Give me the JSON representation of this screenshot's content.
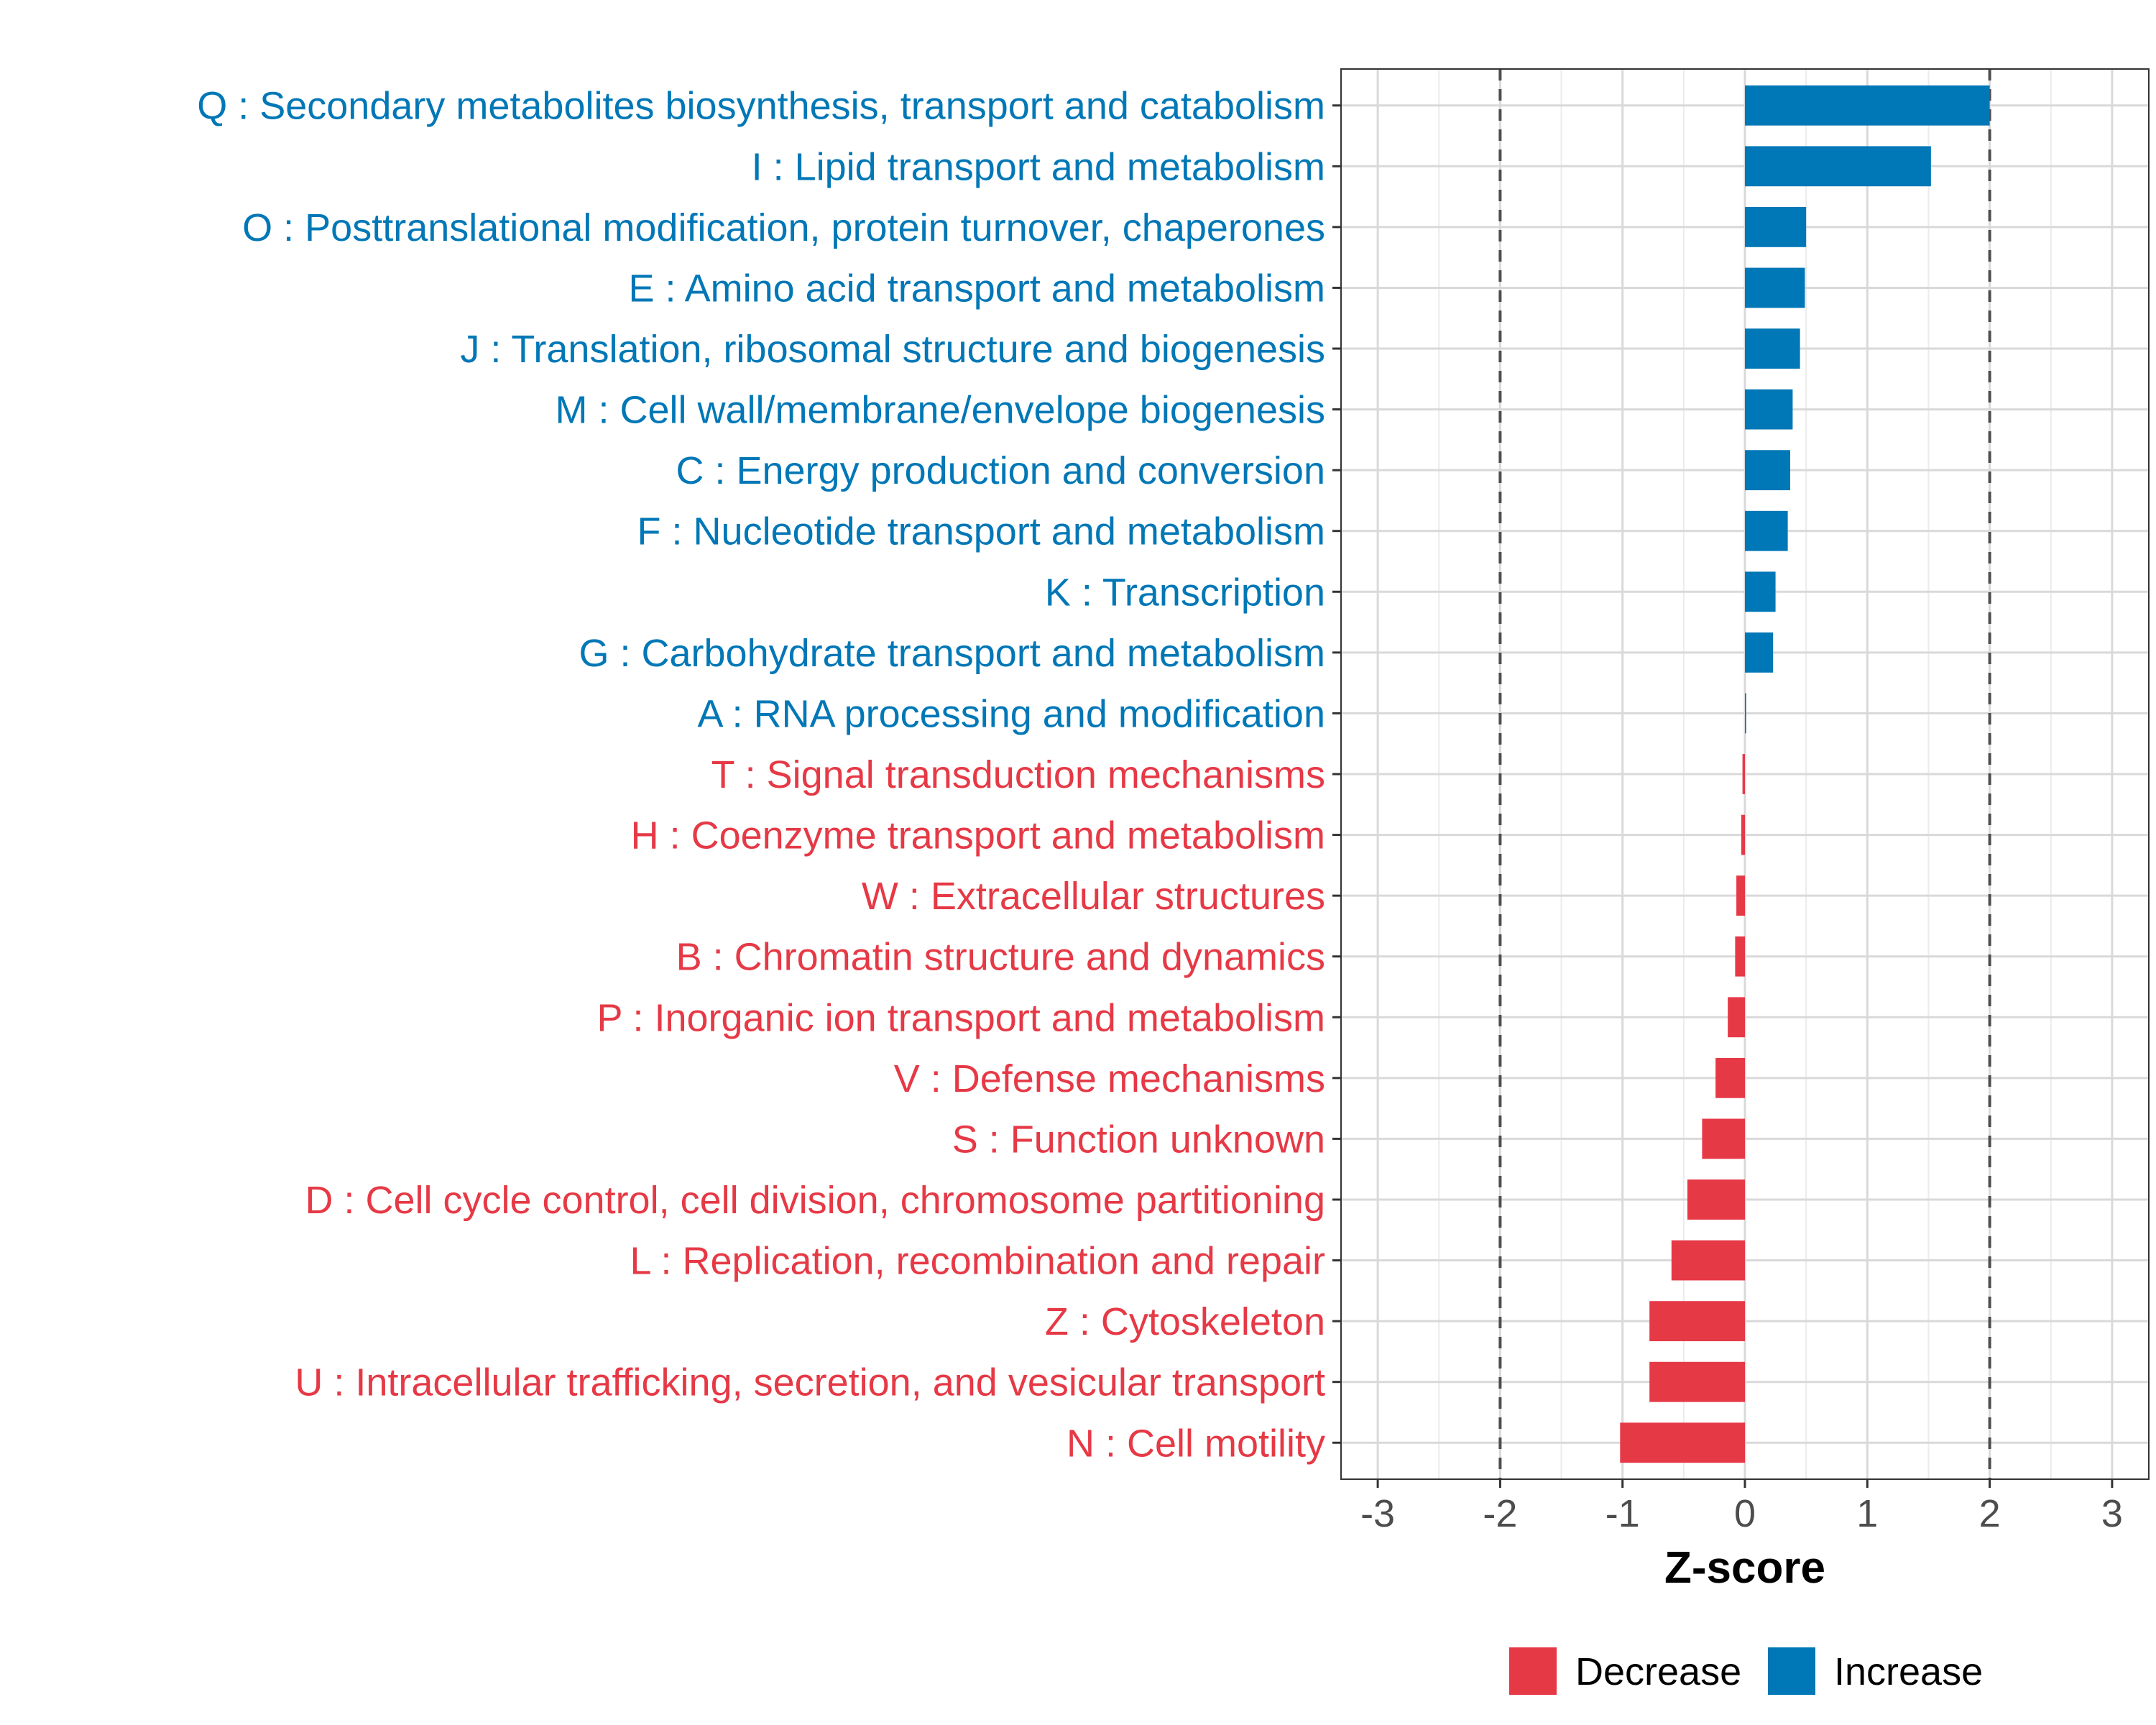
{
  "chart_data": {
    "type": "bar",
    "orientation": "horizontal",
    "title": "",
    "xlabel": "Z-score",
    "ylabel": "",
    "xlim": [
      -3.3,
      3.3
    ],
    "xticks": [
      -3,
      -2,
      -1,
      0,
      1,
      2,
      3
    ],
    "xtick_labels": [
      "-3",
      "-2",
      "-1",
      "0",
      "1",
      "2",
      "3"
    ],
    "reference_lines": [
      -2,
      2
    ],
    "grid": true,
    "colors": {
      "Decrease": "#e63946",
      "Increase": "#0077b6"
    },
    "legend": {
      "position": "bottom",
      "entries": [
        {
          "label": "Decrease",
          "color": "#e63946"
        },
        {
          "label": "Increase",
          "color": "#0077b6"
        }
      ]
    },
    "categories": [
      "Q : Secondary metabolites biosynthesis, transport and catabolism",
      "I : Lipid transport and metabolism",
      "O : Posttranslational modification, protein turnover, chaperones",
      "E : Amino acid transport and metabolism",
      "J : Translation, ribosomal structure and biogenesis",
      "M : Cell wall/membrane/envelope biogenesis",
      "C : Energy production and conversion",
      "F : Nucleotide transport and metabolism",
      "K : Transcription",
      "G : Carbohydrate transport and metabolism",
      "A : RNA processing and modification",
      "T : Signal transduction mechanisms",
      "H : Coenzyme transport and metabolism",
      "W : Extracellular structures",
      "B : Chromatin structure and dynamics",
      "P : Inorganic ion transport and metabolism",
      "V : Defense mechanisms",
      "S : Function unknown",
      "D : Cell cycle control, cell division, chromosome partitioning",
      "L : Replication, recombination and repair",
      "Z : Cytoskeleton",
      "U : Intracellular trafficking, secretion, and vesicular transport",
      "N : Cell motility"
    ],
    "values": [
      2.0,
      1.52,
      0.5,
      0.49,
      0.45,
      0.39,
      0.37,
      0.35,
      0.25,
      0.23,
      0.01,
      -0.02,
      -0.03,
      -0.07,
      -0.08,
      -0.14,
      -0.24,
      -0.35,
      -0.47,
      -0.6,
      -0.78,
      -0.78,
      -1.02
    ],
    "groups": [
      "Increase",
      "Increase",
      "Increase",
      "Increase",
      "Increase",
      "Increase",
      "Increase",
      "Increase",
      "Increase",
      "Increase",
      "Increase",
      "Decrease",
      "Decrease",
      "Decrease",
      "Decrease",
      "Decrease",
      "Decrease",
      "Decrease",
      "Decrease",
      "Decrease",
      "Decrease",
      "Decrease",
      "Decrease"
    ]
  }
}
